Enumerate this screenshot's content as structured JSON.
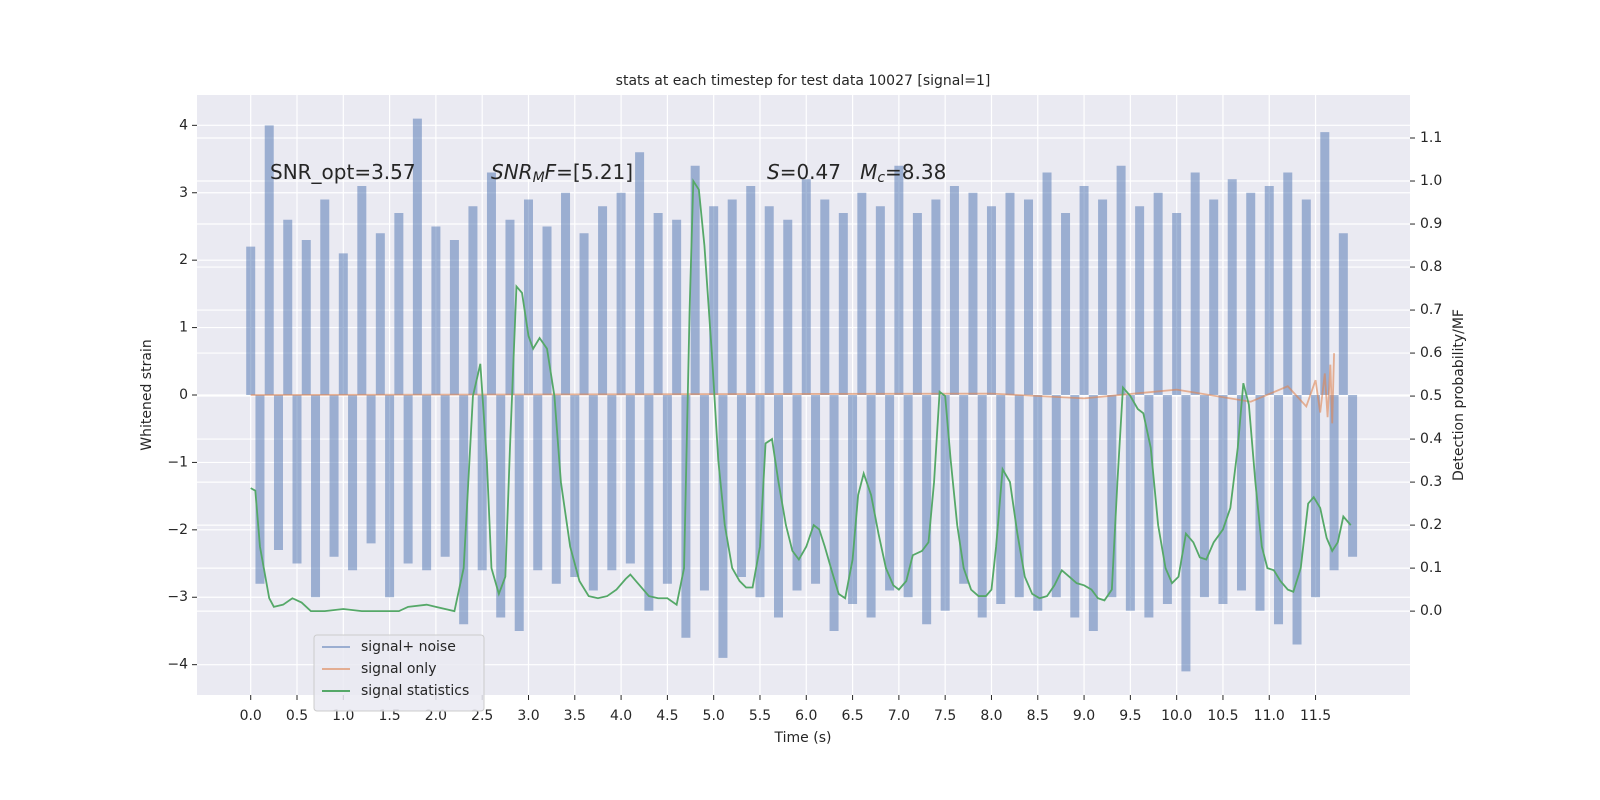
{
  "chart_data": {
    "type": "line",
    "title": "stats at each timestep for test data 10027 [signal=1]",
    "xlabel": "Time (s)",
    "ylabel": "Whitened strain",
    "y2label": "Detection probability/MF",
    "xlim": [
      -0.58,
      12.52
    ],
    "ylim": [
      -4.45,
      4.45
    ],
    "y2lim": [
      -0.195,
      1.2
    ],
    "xticks": [
      {
        "value": 0,
        "label": "0.0"
      },
      {
        "value": 0.5,
        "label": "0.5"
      },
      {
        "value": 1,
        "label": "1.0"
      },
      {
        "value": 1.5,
        "label": "1.5"
      },
      {
        "value": 2,
        "label": "2.0"
      },
      {
        "value": 2.5,
        "label": "2.5"
      },
      {
        "value": 3,
        "label": "3.0"
      },
      {
        "value": 3.5,
        "label": "3.5"
      },
      {
        "value": 4,
        "label": "4.0"
      },
      {
        "value": 4.5,
        "label": "4.5"
      },
      {
        "value": 5,
        "label": "5.0"
      },
      {
        "value": 5.5,
        "label": "5.5"
      },
      {
        "value": 6,
        "label": "6.0"
      },
      {
        "value": 6.5,
        "label": "6.5"
      },
      {
        "value": 7,
        "label": "7.0"
      },
      {
        "value": 7.5,
        "label": "7.5"
      },
      {
        "value": 8,
        "label": "8.0"
      },
      {
        "value": 8.5,
        "label": "8.5"
      },
      {
        "value": 9,
        "label": "9.0"
      },
      {
        "value": 9.5,
        "label": "9.5"
      },
      {
        "value": 10,
        "label": "10.0"
      },
      {
        "value": 10.5,
        "label": "10.5"
      },
      {
        "value": 11,
        "label": "11.0"
      },
      {
        "value": 11.5,
        "label": "11.5"
      }
    ],
    "yticks": [
      {
        "value": -4,
        "label": "−4"
      },
      {
        "value": -3,
        "label": "−3"
      },
      {
        "value": -2,
        "label": "−2"
      },
      {
        "value": -1,
        "label": "−1"
      },
      0,
      1,
      2,
      3,
      4
    ],
    "y2ticks": [
      {
        "value": 0,
        "label": "0.0"
      },
      0.1,
      0.2,
      0.3,
      0.4,
      0.5,
      0.6,
      0.7,
      0.8,
      0.9,
      {
        "value": 1,
        "label": "1.0"
      },
      1.1
    ],
    "grid": true,
    "legend": "lower left",
    "annotations": [
      [
        {
          "text": "SNR_opt=3.57",
          "style": "normal"
        }
      ],
      [
        {
          "text": "SNR",
          "style": "italic"
        },
        {
          "text": "M",
          "style": "italic-sub"
        },
        {
          "text": "F",
          "style": "italic"
        },
        {
          "text": "=[5.21]",
          "style": "normal"
        }
      ],
      [
        {
          "text": "S",
          "style": "italic"
        },
        {
          "text": "=0.47   ",
          "style": "normal"
        },
        {
          "text": "M",
          "style": "italic"
        },
        {
          "text": "c",
          "style": "italic-sub"
        },
        {
          "text": "=8.38",
          "style": "normal"
        }
      ]
    ],
    "series": [
      {
        "name": "signal+ noise",
        "color": "#4c72b0",
        "opacity": 0.5,
        "style": "spikes",
        "x": [
          0.0,
          0.1,
          0.2,
          0.3,
          0.4,
          0.5,
          0.6,
          0.7,
          0.8,
          0.9,
          1.0,
          1.1,
          1.2,
          1.3,
          1.4,
          1.5,
          1.6,
          1.7,
          1.8,
          1.9,
          2.0,
          2.1,
          2.2,
          2.3,
          2.4,
          2.5,
          2.6,
          2.7,
          2.8,
          2.9,
          3.0,
          3.1,
          3.2,
          3.3,
          3.4,
          3.5,
          3.6,
          3.7,
          3.8,
          3.9,
          4.0,
          4.1,
          4.2,
          4.3,
          4.4,
          4.5,
          4.6,
          4.7,
          4.8,
          4.9,
          5.0,
          5.1,
          5.2,
          5.3,
          5.4,
          5.5,
          5.6,
          5.7,
          5.8,
          5.9,
          6.0,
          6.1,
          6.2,
          6.3,
          6.4,
          6.5,
          6.6,
          6.7,
          6.8,
          6.9,
          7.0,
          7.1,
          7.2,
          7.3,
          7.4,
          7.5,
          7.6,
          7.7,
          7.8,
          7.9,
          8.0,
          8.1,
          8.2,
          8.3,
          8.4,
          8.5,
          8.6,
          8.7,
          8.8,
          8.9,
          9.0,
          9.1,
          9.2,
          9.3,
          9.4,
          9.5,
          9.6,
          9.7,
          9.8,
          9.9,
          10.0,
          10.1,
          10.2,
          10.3,
          10.4,
          10.5,
          10.6,
          10.7,
          10.8,
          10.9,
          11.0,
          11.1,
          11.2,
          11.3,
          11.4,
          11.5,
          11.6,
          11.7,
          11.8,
          11.9
        ],
        "values": [
          2.2,
          -2.8,
          4.0,
          -2.3,
          2.6,
          -2.5,
          2.3,
          -3.0,
          2.9,
          -2.4,
          2.1,
          -2.6,
          3.1,
          -2.2,
          2.4,
          -3.0,
          2.7,
          -2.5,
          4.1,
          -2.6,
          2.5,
          -2.4,
          2.3,
          -3.4,
          2.8,
          -2.6,
          3.3,
          -3.3,
          2.6,
          -3.5,
          2.9,
          -2.6,
          2.5,
          -2.8,
          3.0,
          -2.7,
          2.4,
          -2.9,
          2.8,
          -2.6,
          3.0,
          -2.5,
          3.6,
          -3.2,
          2.7,
          -2.8,
          2.6,
          -3.6,
          3.4,
          -2.9,
          2.8,
          -3.9,
          2.9,
          -2.7,
          3.1,
          -3.0,
          2.8,
          -3.3,
          2.6,
          -2.9,
          3.2,
          -2.8,
          2.9,
          -3.5,
          2.7,
          -3.1,
          3.0,
          -3.3,
          2.8,
          -2.9,
          3.4,
          -3.0,
          2.7,
          -3.4,
          2.9,
          -3.2,
          3.1,
          -2.8,
          3.0,
          -3.3,
          2.8,
          -3.1,
          3.0,
          -3.0,
          2.9,
          -3.2,
          3.3,
          -3.0,
          2.7,
          -3.3,
          3.1,
          -3.5,
          2.9,
          -3.0,
          3.4,
          -3.2,
          2.8,
          -3.3,
          3.0,
          -3.1,
          2.7,
          -4.1,
          3.3,
          -3.0,
          2.9,
          -3.1,
          3.2,
          -2.9,
          3.0,
          -3.2,
          3.1,
          -3.4,
          3.3,
          -3.7,
          2.9,
          -3.0,
          3.9,
          -2.6,
          2.4,
          -2.4
        ]
      },
      {
        "name": "signal only",
        "color": "#dd8452",
        "opacity": 0.6,
        "style": "line",
        "x": [
          0.0,
          8.0,
          9.0,
          10.0,
          10.8,
          11.2,
          11.4,
          11.5,
          11.55,
          11.6,
          11.63,
          11.66,
          11.68,
          11.7
        ],
        "values": [
          0.0,
          0.02,
          -0.05,
          0.08,
          -0.1,
          0.13,
          -0.17,
          0.22,
          -0.26,
          0.32,
          -0.33,
          0.45,
          -0.42,
          0.62
        ]
      },
      {
        "name": "signal statistics",
        "color": "#55a868",
        "opacity": 1,
        "style": "line",
        "axis": "y2",
        "x": [
          0,
          0.05,
          0.1,
          0.2,
          0.25,
          0.35,
          0.45,
          0.55,
          0.65,
          0.8,
          1.0,
          1.2,
          1.4,
          1.6,
          1.7,
          1.9,
          2.0,
          2.2,
          2.3,
          2.4,
          2.48,
          2.55,
          2.6,
          2.68,
          2.75,
          2.8,
          2.87,
          2.93,
          3.0,
          3.05,
          3.12,
          3.2,
          3.28,
          3.35,
          3.45,
          3.55,
          3.65,
          3.75,
          3.85,
          3.95,
          4.05,
          4.1,
          4.2,
          4.3,
          4.4,
          4.5,
          4.6,
          4.68,
          4.74,
          4.78,
          4.84,
          4.9,
          4.98,
          5.05,
          5.12,
          5.2,
          5.28,
          5.35,
          5.42,
          5.5,
          5.56,
          5.63,
          5.7,
          5.78,
          5.85,
          5.92,
          6.0,
          6.08,
          6.14,
          6.2,
          6.28,
          6.35,
          6.42,
          6.5,
          6.56,
          6.62,
          6.7,
          6.78,
          6.86,
          6.94,
          7.0,
          7.08,
          7.15,
          7.25,
          7.32,
          7.38,
          7.44,
          7.5,
          7.56,
          7.63,
          7.7,
          7.78,
          7.86,
          7.94,
          8.0,
          8.05,
          8.12,
          8.2,
          8.28,
          8.36,
          8.44,
          8.52,
          8.6,
          8.68,
          8.76,
          8.84,
          8.92,
          9.0,
          9.08,
          9.15,
          9.22,
          9.3,
          9.36,
          9.42,
          9.5,
          9.58,
          9.64,
          9.72,
          9.8,
          9.88,
          9.95,
          10.02,
          10.1,
          10.18,
          10.25,
          10.32,
          10.4,
          10.5,
          10.58,
          10.66,
          10.72,
          10.78,
          10.85,
          10.92,
          10.98,
          11.05,
          11.12,
          11.2,
          11.26,
          11.34,
          11.42,
          11.48,
          11.55,
          11.62,
          11.68,
          11.74,
          11.8,
          11.88
        ],
        "values": [
          0.286,
          0.28,
          0.15,
          0.03,
          0.01,
          0.015,
          0.03,
          0.02,
          0.0,
          0.0,
          0.005,
          0.0,
          0.0,
          0.0,
          0.01,
          0.015,
          0.01,
          0.0,
          0.1,
          0.5,
          0.575,
          0.35,
          0.1,
          0.04,
          0.08,
          0.38,
          0.755,
          0.74,
          0.64,
          0.61,
          0.635,
          0.61,
          0.5,
          0.3,
          0.15,
          0.07,
          0.035,
          0.03,
          0.035,
          0.05,
          0.075,
          0.085,
          0.06,
          0.035,
          0.03,
          0.03,
          0.015,
          0.1,
          0.7,
          1.0,
          0.98,
          0.85,
          0.6,
          0.35,
          0.2,
          0.1,
          0.07,
          0.055,
          0.055,
          0.15,
          0.39,
          0.4,
          0.3,
          0.2,
          0.14,
          0.12,
          0.15,
          0.2,
          0.19,
          0.15,
          0.09,
          0.04,
          0.03,
          0.12,
          0.27,
          0.32,
          0.27,
          0.18,
          0.1,
          0.06,
          0.05,
          0.07,
          0.13,
          0.14,
          0.16,
          0.3,
          0.51,
          0.5,
          0.35,
          0.2,
          0.1,
          0.05,
          0.035,
          0.035,
          0.05,
          0.15,
          0.33,
          0.3,
          0.18,
          0.08,
          0.04,
          0.03,
          0.035,
          0.06,
          0.095,
          0.08,
          0.065,
          0.06,
          0.05,
          0.03,
          0.025,
          0.05,
          0.3,
          0.52,
          0.5,
          0.47,
          0.46,
          0.38,
          0.2,
          0.1,
          0.065,
          0.08,
          0.18,
          0.16,
          0.125,
          0.12,
          0.16,
          0.19,
          0.24,
          0.38,
          0.53,
          0.48,
          0.3,
          0.15,
          0.1,
          0.095,
          0.07,
          0.05,
          0.045,
          0.1,
          0.25,
          0.265,
          0.24,
          0.17,
          0.14,
          0.16,
          0.22,
          0.2
        ]
      }
    ]
  }
}
